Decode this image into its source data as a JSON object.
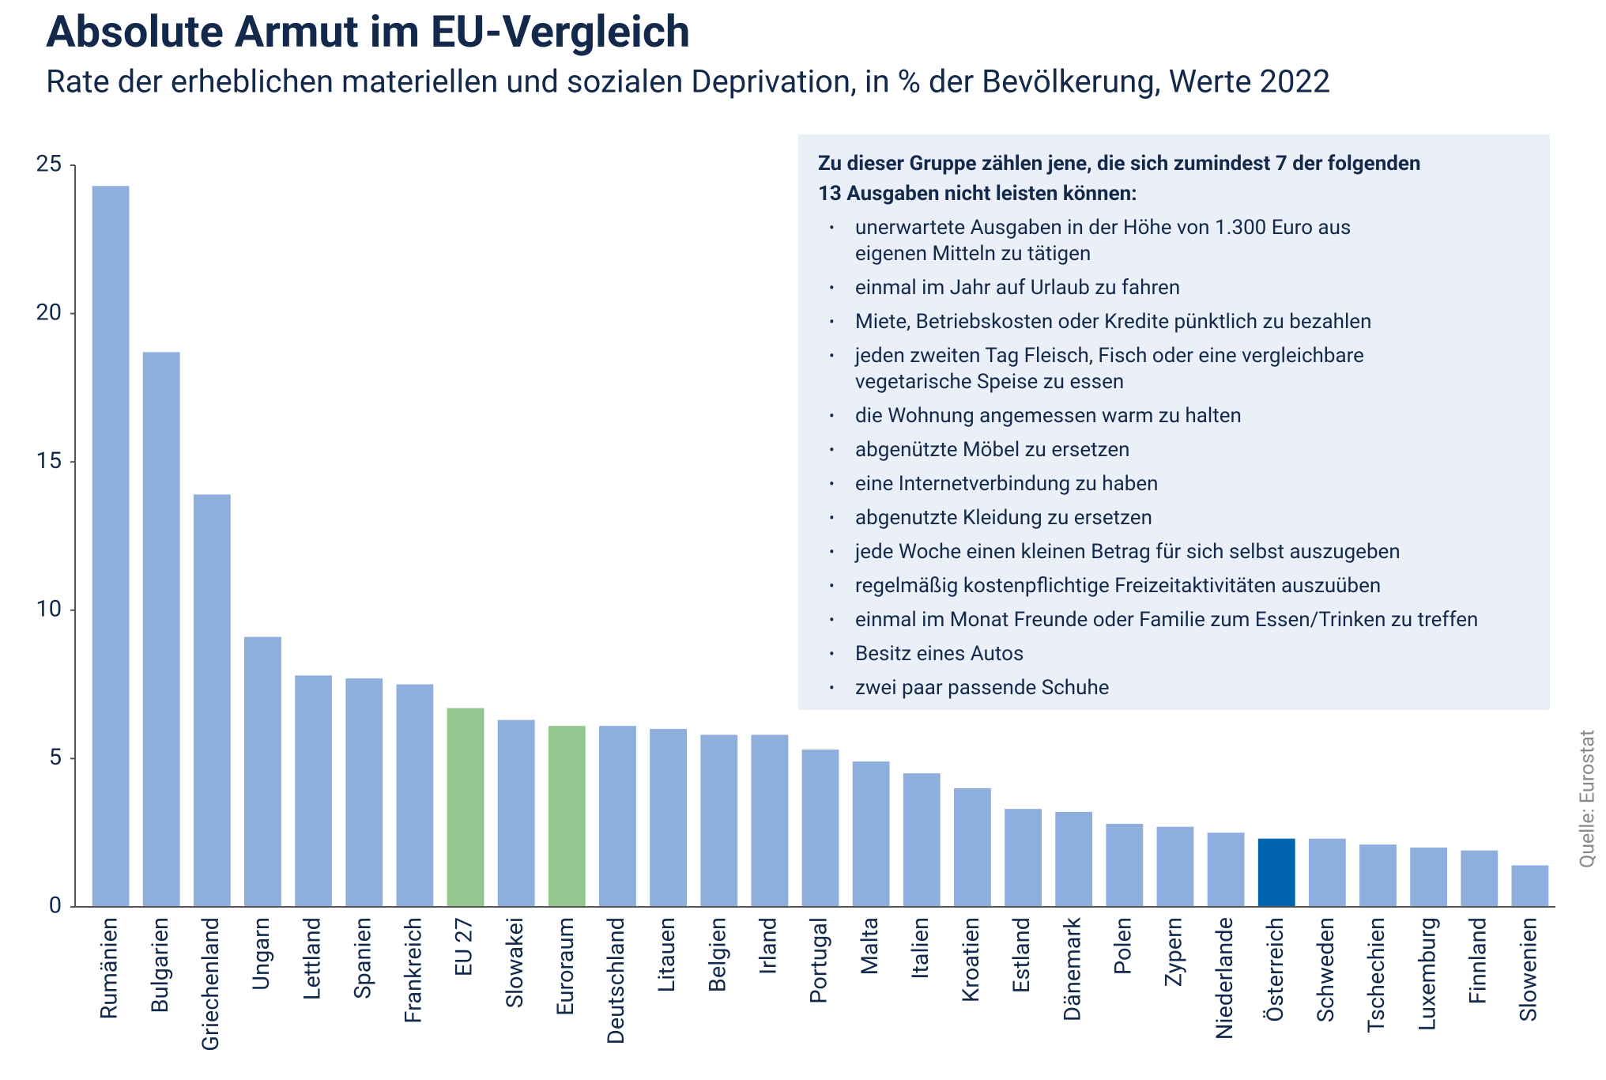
{
  "chart_data": {
    "type": "bar",
    "title": "Absolute Armut im EU-Vergleich",
    "subtitle": "Rate der erheblichen materiellen und sozialen Deprivation, in % der Bevölkerung, Werte 2022",
    "source": "Quelle: Eurostat",
    "categories": [
      "Rumänien",
      "Bulgarien",
      "Griechenland",
      "Ungarn",
      "Lettland",
      "Spanien",
      "Frankreich",
      "EU 27",
      "Slowakei",
      "Euroraum",
      "Deutschland",
      "Litauen",
      "Belgien",
      "Irland",
      "Portugal",
      "Malta",
      "Italien",
      "Kroatien",
      "Estland",
      "Dänemark",
      "Polen",
      "Zypern",
      "Niederlande",
      "Österreich",
      "Schweden",
      "Tschechien",
      "Luxemburg",
      "Finnland",
      "Slowenien"
    ],
    "values": [
      24.3,
      18.7,
      13.9,
      9.1,
      7.8,
      7.7,
      7.5,
      6.7,
      6.3,
      6.1,
      6.1,
      6.0,
      5.8,
      5.8,
      5.3,
      4.9,
      4.5,
      4.0,
      3.3,
      3.2,
      2.8,
      2.7,
      2.5,
      2.3,
      2.3,
      2.1,
      2.0,
      1.9,
      1.4
    ],
    "colors": [
      "#8eaedd",
      "#8eaedd",
      "#8eaedd",
      "#8eaedd",
      "#8eaedd",
      "#8eaedd",
      "#8eaedd",
      "#93c78f",
      "#8eaedd",
      "#93c78f",
      "#8eaedd",
      "#8eaedd",
      "#8eaedd",
      "#8eaedd",
      "#8eaedd",
      "#8eaedd",
      "#8eaedd",
      "#8eaedd",
      "#8eaedd",
      "#8eaedd",
      "#8eaedd",
      "#8eaedd",
      "#8eaedd",
      "#0064b0",
      "#8eaedd",
      "#8eaedd",
      "#8eaedd",
      "#8eaedd",
      "#8eaedd"
    ],
    "ylim": [
      0,
      25
    ],
    "yticks": [
      0,
      5,
      10,
      15,
      20,
      25
    ],
    "grid": false,
    "note": {
      "title_lines": [
        "Zu dieser Gruppe zählen jene, die sich zumindest 7 der folgenden",
        "13 Ausgaben nicht leisten können:"
      ],
      "items": [
        [
          "unerwartete Ausgaben in der Höhe von 1.300 Euro aus",
          "eigenen Mitteln zu tätigen"
        ],
        [
          "einmal im Jahr auf Urlaub zu fahren"
        ],
        [
          "Miete, Betriebskosten oder Kredite pünktlich zu bezahlen"
        ],
        [
          "jeden zweiten Tag Fleisch, Fisch oder eine vergleichbare",
          "vegetarische Speise zu essen"
        ],
        [
          "die Wohnung angemessen warm zu halten"
        ],
        [
          "abgenützte Möbel zu ersetzen"
        ],
        [
          "eine Internetverbindung zu haben"
        ],
        [
          "abgenutzte Kleidung zu ersetzen"
        ],
        [
          "jede Woche einen kleinen Betrag für sich selbst auszugeben"
        ],
        [
          "regelmäßig kostenpflichtige Freizeitaktivitäten auszuüben"
        ],
        [
          "einmal im Monat Freunde oder Familie zum Essen/Trinken zu treffen"
        ],
        [
          "Besitz eines Autos"
        ],
        [
          "zwei paar passende Schuhe"
        ]
      ]
    }
  }
}
